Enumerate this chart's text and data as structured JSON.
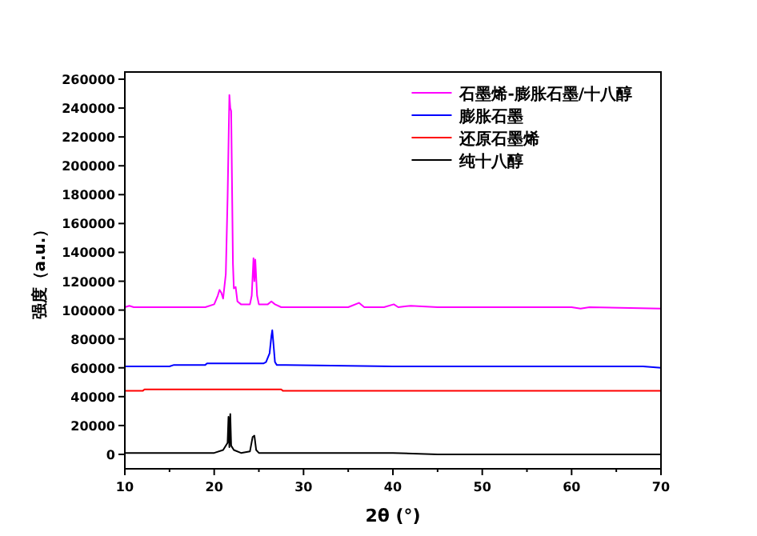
{
  "chart_data": {
    "type": "line",
    "xlabel": "2θ (°)",
    "ylabel": "强度（a.u.）",
    "xlim": [
      10,
      70
    ],
    "xticks": [
      10,
      20,
      30,
      40,
      50,
      60,
      70
    ],
    "ylim": [
      -10000,
      265000
    ],
    "yticks": [
      0,
      20000,
      40000,
      60000,
      80000,
      100000,
      120000,
      140000,
      160000,
      180000,
      200000,
      220000,
      240000,
      260000
    ],
    "legend": "top right",
    "series": [
      {
        "name": "石墨烯-膨胀石墨/十八醇",
        "color": "#ff00ff",
        "x": [
          10,
          10.5,
          11,
          19,
          20,
          20.4,
          20.6,
          20.8,
          21,
          21.3,
          21.5,
          21.7,
          21.8,
          21.9,
          22.1,
          22.2,
          22.4,
          22.6,
          23,
          24,
          24.2,
          24.4,
          24.5,
          24.6,
          24.8,
          25,
          26,
          26.4,
          26.8,
          27.5,
          35,
          36.2,
          36.8,
          39,
          40.1,
          40.6,
          42,
          45,
          50,
          55,
          60,
          61,
          62,
          70
        ],
        "values": [
          102000,
          103000,
          102000,
          102000,
          104000,
          110000,
          114000,
          112000,
          108000,
          125000,
          178000,
          249000,
          240000,
          238000,
          132000,
          115000,
          116000,
          106000,
          104000,
          104000,
          110000,
          136000,
          120000,
          135000,
          110000,
          104000,
          104000,
          106000,
          104000,
          102000,
          102000,
          105000,
          102000,
          102000,
          104000,
          102000,
          103000,
          102000,
          102000,
          102000,
          102000,
          101000,
          102000,
          101000
        ]
      },
      {
        "name": "膨胀石墨",
        "color": "#0000ff",
        "x": [
          10,
          15,
          15.5,
          19,
          19.2,
          25.5,
          25.8,
          26.2,
          26.4,
          26.5,
          26.6,
          26.8,
          27,
          28,
          40,
          60,
          68,
          70
        ],
        "values": [
          61000,
          61000,
          62000,
          62000,
          63000,
          63000,
          64000,
          70000,
          82000,
          86000,
          79000,
          64000,
          62000,
          62000,
          61000,
          61000,
          61000,
          60000
        ]
      },
      {
        "name": "还原石墨烯",
        "color": "#ff0000",
        "x": [
          10,
          12,
          12.2,
          27.5,
          27.7,
          70
        ],
        "values": [
          44000,
          44000,
          45000,
          45000,
          44000,
          44000
        ]
      },
      {
        "name": "纯十八醇",
        "color": "#000000",
        "x": [
          10,
          20,
          21,
          21.5,
          21.6,
          21.7,
          21.8,
          21.9,
          22.2,
          23,
          24,
          24.3,
          24.5,
          24.7,
          25,
          40,
          45,
          70
        ],
        "values": [
          1000,
          1000,
          3000,
          8000,
          26000,
          5000,
          28000,
          6000,
          3000,
          1000,
          2000,
          12000,
          13000,
          3000,
          1000,
          1000,
          0,
          0
        ]
      }
    ]
  }
}
